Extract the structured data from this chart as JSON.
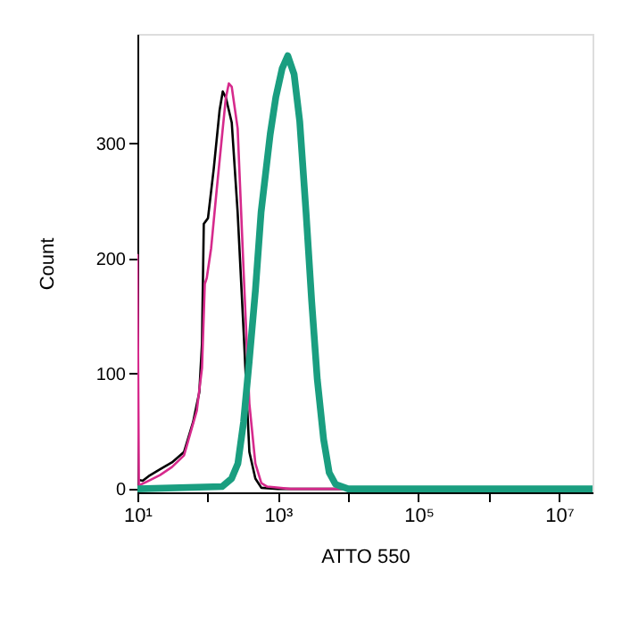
{
  "chart_data": {
    "type": "line",
    "xlabel": "ATTO 550",
    "ylabel": "Count",
    "log": "x",
    "xlim": [
      10,
      30000000
    ],
    "ylim": [
      -3,
      395
    ],
    "xticks": [
      {
        "value": 10,
        "label": "10¹"
      },
      {
        "value": 100,
        "label": null
      },
      {
        "value": 1000,
        "label": "10³"
      },
      {
        "value": 10000,
        "label": null
      },
      {
        "value": 100000,
        "label": "10⁵"
      },
      {
        "value": 1000000,
        "label": null
      },
      {
        "value": 10000000,
        "label": "10⁷"
      }
    ],
    "yticks": [
      0,
      100,
      200,
      300
    ],
    "grid": false,
    "line_style": "solid",
    "series": [
      {
        "color": "#000000",
        "x": [
          10,
          11.9,
          14.4,
          21,
          31,
          46,
          62,
          76,
          83,
          88,
          101,
          122,
          148,
          164,
          181,
          220,
          267,
          325,
          392,
          477,
          580,
          1000,
          30000000
        ],
        "values": [
          8,
          7,
          11,
          17,
          23,
          32,
          58,
          84,
          126,
          230,
          235,
          278,
          329,
          345,
          340,
          318,
          240,
          136,
          32,
          9,
          1,
          0,
          0
        ]
      },
      {
        "color": "#d62a8c",
        "x": [
          10,
          10.5,
          14.4,
          21,
          31,
          46,
          70,
          83,
          91,
          97,
          112,
          135,
          164,
          181,
          200,
          220,
          267,
          325,
          392,
          477,
          580,
          703,
          1500,
          30000000
        ],
        "values": [
          204,
          3,
          7,
          12,
          19,
          29,
          68,
          105,
          178,
          183,
          209,
          261,
          313,
          339,
          352,
          349,
          313,
          188,
          74,
          22,
          5,
          2,
          0,
          0
        ]
      },
      {
        "color": "#1a9e80",
        "x": [
          10,
          160,
          219,
          269,
          324,
          389,
          479,
          575,
          776,
          933,
          1148,
          1380,
          1698,
          2042,
          2512,
          3020,
          3631,
          4467,
          5370,
          6607,
          10000,
          30000000
        ],
        "values": [
          0,
          2,
          9,
          22,
          58,
          110,
          173,
          240,
          308,
          340,
          365,
          376,
          360,
          319,
          240,
          163,
          95,
          43,
          14,
          4,
          0,
          0
        ]
      }
    ]
  }
}
